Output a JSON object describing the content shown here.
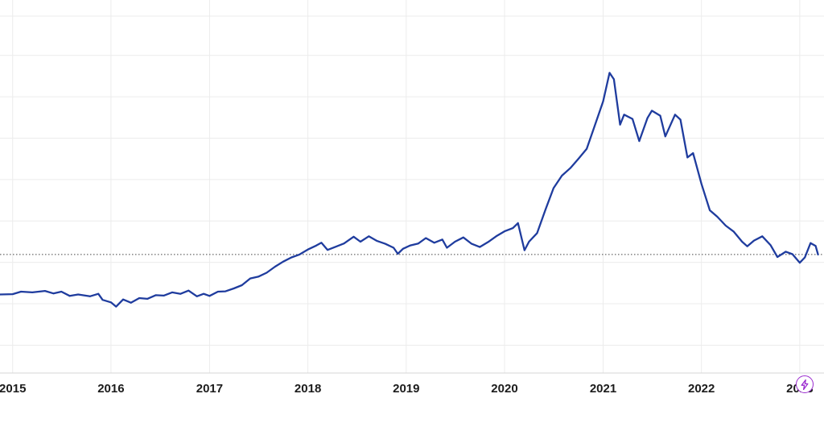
{
  "chart_data": {
    "type": "line",
    "title": "",
    "xlabel": "",
    "ylabel": "",
    "x_ticks": [
      "2015",
      "2016",
      "2017",
      "2018",
      "2019",
      "2020",
      "2021",
      "2022",
      "2023"
    ],
    "xlim": [
      "2014-11-15",
      "2023-04-01"
    ],
    "ylim": [
      0,
      100
    ],
    "y_gridlines": [
      7.8,
      19.4,
      31.0,
      42.6,
      54.2,
      65.8,
      77.4,
      89.0,
      100
    ],
    "last_value_line": 33.2,
    "grid": true,
    "legend": "none",
    "line_color": "#1f3c9e",
    "series": [
      {
        "values": [
          [
            "2014-11-15",
            22.0
          ],
          [
            "2015-01-01",
            22.1
          ],
          [
            "2015-02-01",
            22.8
          ],
          [
            "2015-03-15",
            22.6
          ],
          [
            "2015-05-01",
            23.0
          ],
          [
            "2015-06-01",
            22.3
          ],
          [
            "2015-07-01",
            22.8
          ],
          [
            "2015-08-01",
            21.6
          ],
          [
            "2015-09-01",
            22.0
          ],
          [
            "2015-10-15",
            21.5
          ],
          [
            "2015-11-15",
            22.2
          ],
          [
            "2015-12-01",
            20.5
          ],
          [
            "2016-01-01",
            19.8
          ],
          [
            "2016-01-20",
            18.6
          ],
          [
            "2016-02-15",
            20.6
          ],
          [
            "2016-03-15",
            19.7
          ],
          [
            "2016-04-15",
            21.0
          ],
          [
            "2016-05-15",
            20.8
          ],
          [
            "2016-06-15",
            21.8
          ],
          [
            "2016-07-15",
            21.7
          ],
          [
            "2016-08-15",
            22.6
          ],
          [
            "2016-09-15",
            22.2
          ],
          [
            "2016-10-15",
            23.1
          ],
          [
            "2016-11-15",
            21.5
          ],
          [
            "2016-12-10",
            22.2
          ],
          [
            "2017-01-01",
            21.6
          ],
          [
            "2017-02-01",
            22.8
          ],
          [
            "2017-03-01",
            22.9
          ],
          [
            "2017-04-01",
            23.7
          ],
          [
            "2017-05-01",
            24.6
          ],
          [
            "2017-06-01",
            26.5
          ],
          [
            "2017-07-01",
            27.0
          ],
          [
            "2017-08-01",
            28.1
          ],
          [
            "2017-09-01",
            29.8
          ],
          [
            "2017-10-01",
            31.2
          ],
          [
            "2017-11-01",
            32.4
          ],
          [
            "2017-12-01",
            33.2
          ],
          [
            "2018-01-01",
            34.6
          ],
          [
            "2018-02-01",
            35.7
          ],
          [
            "2018-02-20",
            36.5
          ],
          [
            "2018-03-15",
            34.5
          ],
          [
            "2018-04-15",
            35.4
          ],
          [
            "2018-05-15",
            36.3
          ],
          [
            "2018-06-20",
            38.2
          ],
          [
            "2018-07-15",
            36.8
          ],
          [
            "2018-08-15",
            38.3
          ],
          [
            "2018-09-15",
            37.0
          ],
          [
            "2018-10-15",
            36.2
          ],
          [
            "2018-11-15",
            35.1
          ],
          [
            "2018-12-01",
            33.4
          ],
          [
            "2018-12-20",
            34.8
          ],
          [
            "2019-01-15",
            35.7
          ],
          [
            "2019-02-15",
            36.3
          ],
          [
            "2019-03-15",
            37.8
          ],
          [
            "2019-04-15",
            36.5
          ],
          [
            "2019-05-15",
            37.4
          ],
          [
            "2019-06-01",
            35.1
          ],
          [
            "2019-07-01",
            36.8
          ],
          [
            "2019-08-01",
            38.0
          ],
          [
            "2019-09-01",
            36.2
          ],
          [
            "2019-10-01",
            35.3
          ],
          [
            "2019-11-01",
            36.7
          ],
          [
            "2019-12-01",
            38.3
          ],
          [
            "2020-01-01",
            39.7
          ],
          [
            "2020-02-01",
            40.6
          ],
          [
            "2020-02-20",
            42.0
          ],
          [
            "2020-03-15",
            34.4
          ],
          [
            "2020-04-01",
            36.8
          ],
          [
            "2020-05-01",
            39.2
          ],
          [
            "2020-06-01",
            45.8
          ],
          [
            "2020-07-01",
            51.8
          ],
          [
            "2020-08-01",
            55.3
          ],
          [
            "2020-09-01",
            57.4
          ],
          [
            "2020-10-01",
            60.0
          ],
          [
            "2020-11-01",
            62.8
          ],
          [
            "2020-12-01",
            69.3
          ],
          [
            "2021-01-01",
            76.1
          ],
          [
            "2021-01-25",
            84.1
          ],
          [
            "2021-02-10",
            82.3
          ],
          [
            "2021-03-05",
            69.6
          ],
          [
            "2021-03-20",
            72.4
          ],
          [
            "2021-04-20",
            71.2
          ],
          [
            "2021-05-15",
            65.0
          ],
          [
            "2021-06-15",
            71.5
          ],
          [
            "2021-07-01",
            73.5
          ],
          [
            "2021-08-01",
            72.1
          ],
          [
            "2021-08-20",
            66.3
          ],
          [
            "2021-09-25",
            72.4
          ],
          [
            "2021-10-15",
            71.0
          ],
          [
            "2021-11-10",
            60.4
          ],
          [
            "2021-12-01",
            61.6
          ],
          [
            "2022-01-01",
            53.0
          ],
          [
            "2022-02-01",
            45.6
          ],
          [
            "2022-03-01",
            43.8
          ],
          [
            "2022-04-01",
            41.3
          ],
          [
            "2022-05-01",
            39.6
          ],
          [
            "2022-06-01",
            36.8
          ],
          [
            "2022-06-20",
            35.5
          ],
          [
            "2022-07-15",
            37.1
          ],
          [
            "2022-08-15",
            38.3
          ],
          [
            "2022-09-15",
            35.8
          ],
          [
            "2022-10-10",
            32.5
          ],
          [
            "2022-11-10",
            34.0
          ],
          [
            "2022-12-05",
            33.3
          ],
          [
            "2023-01-01",
            30.9
          ],
          [
            "2023-01-20",
            32.4
          ],
          [
            "2023-02-10",
            36.4
          ],
          [
            "2023-03-01",
            35.6
          ],
          [
            "2023-03-10",
            33.2
          ]
        ]
      }
    ]
  },
  "controls": {
    "bolt_icon": "lightning-bolt-icon",
    "accent_color": "#9b2ccf"
  }
}
